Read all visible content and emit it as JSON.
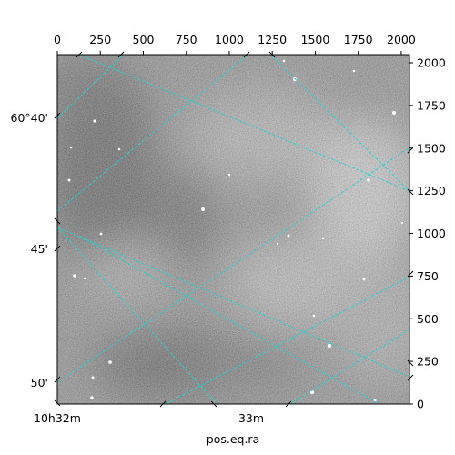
{
  "chart_data": {
    "type": "image",
    "colormap": "grayscale",
    "xlabel": "pos.eq.ra",
    "ylabel": "",
    "pixel_axes": {
      "x": {
        "ticks": [
          0,
          250,
          500,
          750,
          1000,
          1250,
          1500,
          1750,
          2000
        ],
        "labels": [
          "0",
          "250",
          "500",
          "750",
          "1000",
          "1250",
          "1500",
          "1750",
          "2000"
        ],
        "lim": [
          0,
          2048
        ]
      },
      "y": {
        "ticks": [
          0,
          250,
          500,
          750,
          1000,
          1250,
          1500,
          1750,
          2000
        ],
        "labels": [
          "0",
          "250",
          "500",
          "750",
          "1000",
          "1250",
          "1500",
          "1750",
          "2000"
        ],
        "lim": [
          0,
          2048
        ]
      }
    },
    "world_axes": {
      "ra_labels": [
        "10h32m",
        "33m"
      ],
      "dec_labels": [
        "60°40'",
        "45'",
        "50'"
      ]
    },
    "grid": {
      "on": true,
      "color": "#22d3d3",
      "style": "dashed"
    }
  }
}
